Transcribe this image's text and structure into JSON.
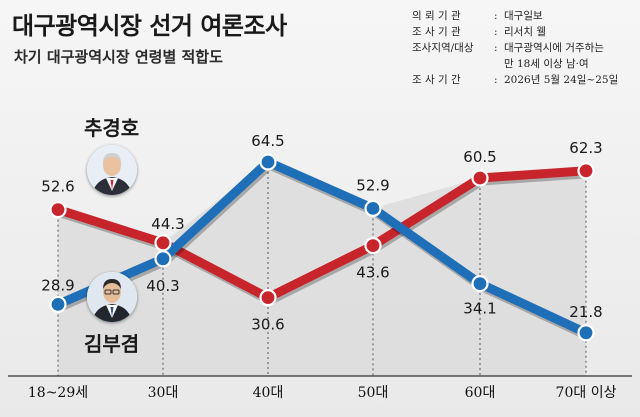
{
  "header": {
    "title": "대구광역시장 선거 여론조사",
    "subtitle": "차기 대구광역시장 연령별 적합도"
  },
  "survey_info": [
    {
      "key": "의 뢰 기 관",
      "sep": ":",
      "value": "대구일보"
    },
    {
      "key": "조 사 기 관",
      "sep": ":",
      "value": "리서치 웰"
    },
    {
      "key": "조사지역/대상",
      "sep": ":",
      "value": "대구광역시에 거주하는"
    },
    {
      "key": "",
      "sep": "",
      "value": "만 18세 이상 남·여"
    },
    {
      "key": "조 사 기 간",
      "sep": ":",
      "value": "2026년 5월 24일~25일"
    }
  ],
  "candidates": {
    "choo": {
      "name": "추경호",
      "color": "#c8242b",
      "icon": "portrait-icon"
    },
    "kim": {
      "name": "김부겸",
      "color": "#1f6fb8",
      "icon": "portrait-icon"
    }
  },
  "chart_data": {
    "type": "line",
    "categories": [
      "18~29세",
      "30대",
      "40대",
      "50대",
      "60대",
      "70대 이상"
    ],
    "series": [
      {
        "name": "추경호",
        "values": [
          52.6,
          44.3,
          30.6,
          43.6,
          60.5,
          62.3
        ],
        "color": "#c8242b"
      },
      {
        "name": "김부겸",
        "values": [
          28.9,
          40.3,
          64.5,
          52.9,
          34.1,
          21.8
        ],
        "color": "#1f6fb8"
      }
    ],
    "ylim": [
      15,
      75
    ],
    "grid": false,
    "xlabel": "",
    "ylabel": ""
  }
}
